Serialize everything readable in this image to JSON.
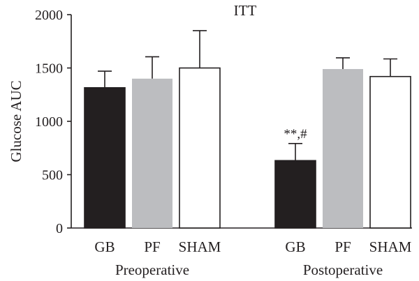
{
  "chart_data": {
    "type": "bar",
    "title": "ITT",
    "ylabel": "Glucose AUC",
    "xlabel": "",
    "ylim": [
      0,
      2000
    ],
    "yticks": [
      "0",
      "500",
      "1000",
      "1500",
      "2000"
    ],
    "grid": false,
    "legend": "none",
    "groups": [
      {
        "name": "Preoperative",
        "bars": [
          {
            "category": "GB",
            "value": 1315,
            "error": 155,
            "color": "#231f20",
            "annotation": ""
          },
          {
            "category": "PF",
            "value": 1400,
            "error": 205,
            "color": "#bcbdc0",
            "annotation": ""
          },
          {
            "category": "SHAM",
            "value": 1500,
            "error": 350,
            "color": "#ffffff",
            "annotation": ""
          }
        ]
      },
      {
        "name": "Postoperative",
        "bars": [
          {
            "category": "GB",
            "value": 632,
            "error": 160,
            "color": "#231f20",
            "annotation": "**,#"
          },
          {
            "category": "PF",
            "value": 1490,
            "error": 105,
            "color": "#bcbdc0",
            "annotation": ""
          },
          {
            "category": "SHAM",
            "value": 1420,
            "error": 165,
            "color": "#ffffff",
            "annotation": ""
          }
        ]
      }
    ]
  }
}
